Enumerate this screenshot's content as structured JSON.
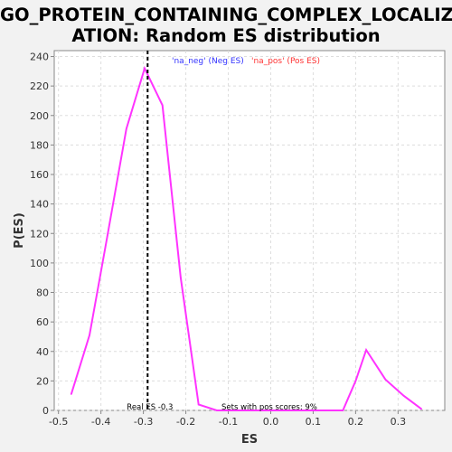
{
  "title_lines": [
    "GO_PROTEIN_CONTAINING_COMPLEX_LOCALIZ",
    "ATION: Random ES distribution"
  ],
  "chart_data": {
    "type": "line",
    "title": "GO_PROTEIN_CONTAINING_COMPLEX_LOCALIZATION: Random ES distribution",
    "xlabel": "ES",
    "ylabel": "P(ES)",
    "xlim": [
      -0.51,
      0.41
    ],
    "ylim": [
      0,
      244
    ],
    "x_ticks": [
      -0.5,
      -0.4,
      -0.3,
      -0.2,
      -0.1,
      0.0,
      0.1,
      0.2,
      0.3
    ],
    "x_tick_labels": [
      "-0.5",
      "-0.4",
      "-0.3",
      "-0.2",
      "-0.1",
      "0.0",
      "0.1",
      "0.2",
      "0.3"
    ],
    "y_ticks": [
      0,
      20,
      40,
      60,
      80,
      100,
      120,
      140,
      160,
      180,
      200,
      220,
      240
    ],
    "grid": true,
    "series": [
      {
        "color": "#ff33ff",
        "x": [
          -0.47,
          -0.427,
          -0.385,
          -0.34,
          -0.297,
          -0.255,
          -0.212,
          -0.17,
          -0.127,
          -0.085,
          -0.042,
          0.0,
          0.043,
          0.085,
          0.128,
          0.17,
          0.2,
          0.225,
          0.27,
          0.313,
          0.355
        ],
        "y": [
          11,
          51,
          118,
          191,
          232,
          207,
          90,
          4,
          0,
          0,
          0,
          0,
          0,
          0,
          0,
          0,
          20,
          41,
          21,
          10,
          1
        ]
      }
    ],
    "real_es": -0.29,
    "legend": [
      {
        "label": "'na_neg' (Neg ES)",
        "color": "#3333ff"
      },
      {
        "label": "'na_pos' (Pos ES)",
        "color": "#ff3333"
      }
    ],
    "annotations": {
      "real_es_label": "Real ES -0.3",
      "pos_scores_label": "Sets with pos scores: 9%"
    }
  }
}
